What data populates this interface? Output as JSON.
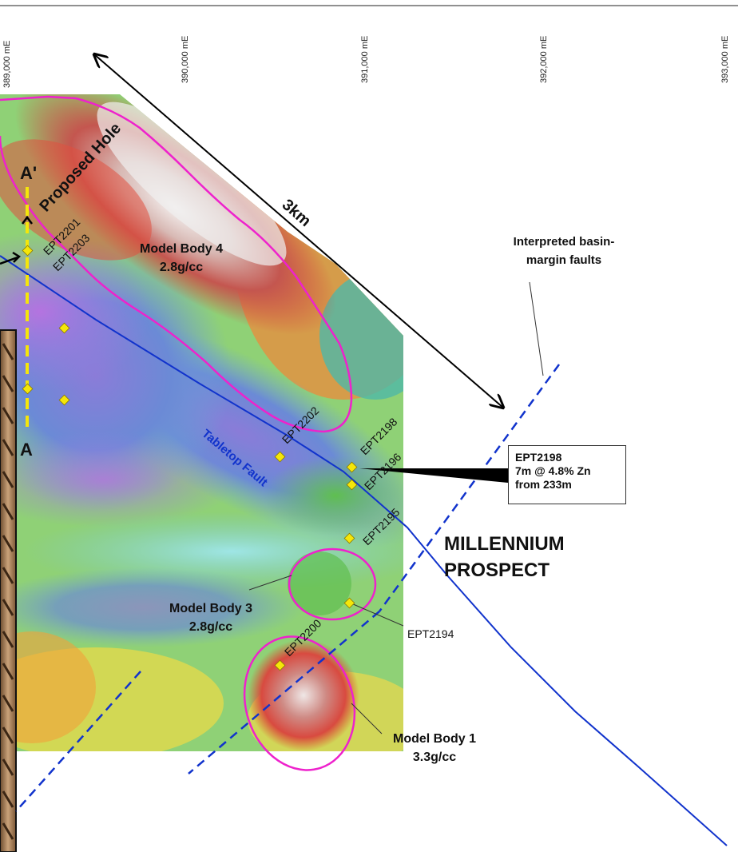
{
  "eastings": [
    "389,000 mE",
    "390,000 mE",
    "391,000 mE",
    "392,000 mE",
    "393,000 mE"
  ],
  "section": {
    "start_label": "A",
    "end_label": "A'",
    "proposed_hole_label": "Proposed Hole"
  },
  "scale_label": "3km",
  "drill_holes": {
    "ept2201": "EPT2201",
    "ept2203": "EPT2203",
    "ept2202": "EPT2202",
    "ept2198": "EPT2198",
    "ept2196": "EPT2196",
    "ept2195": "EPT2195",
    "ept2200": "EPT2200",
    "ept2194": "EPT2194"
  },
  "model_bodies": {
    "body4": {
      "name": "Model Body 4",
      "density": "2.8g/cc"
    },
    "body3": {
      "name": "Model Body 3",
      "density": "2.8g/cc"
    },
    "body1": {
      "name": "Model Body 1",
      "density": "3.3g/cc"
    }
  },
  "faults": {
    "tabletop": "Tabletop Fault",
    "basin_margin_line1": "Interpreted basin-",
    "basin_margin_line2": "margin faults"
  },
  "prospect": {
    "line1": "MILLENNIUM",
    "line2": "PROSPECT"
  },
  "callout": {
    "hole": "EPT2198",
    "intercept": "7m @ 4.8% Zn",
    "depth": "from 233m"
  },
  "colors": {
    "model_outline": "#ee22cc",
    "fault": "#1133cc",
    "section_line": "#f5e60a",
    "drill_hole": "#f5e60a",
    "scale_arrow": "#000000"
  }
}
